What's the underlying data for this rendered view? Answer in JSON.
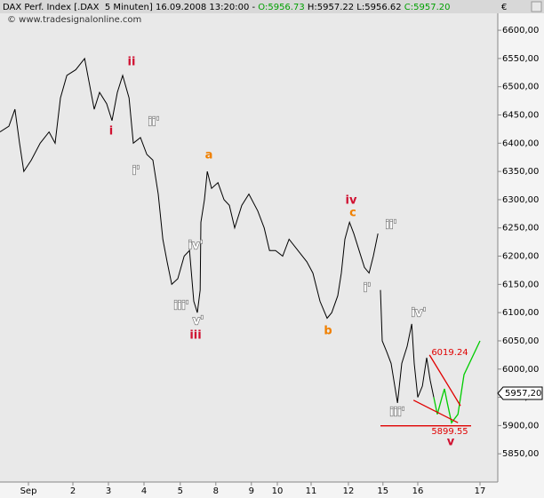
{
  "chart_data": {
    "type": "line",
    "header": [
      {
        "text": "DAX Perf. Index [.DAX  5 Minuten] 16.09.2008 13:20:00 - ",
        "color": "#000000"
      },
      {
        "text": "O:5956.73",
        "color": "#00a000"
      },
      {
        "text": " H:5957.22 L:5956.62 ",
        "color": "#000000"
      },
      {
        "text": "C:5957.20",
        "color": "#00a000"
      }
    ],
    "watermark": "© www.tradesignalonline.com",
    "currency": "€",
    "xlim": [
      -0.8,
      13.2
    ],
    "xticks": [
      {
        "value": 0,
        "label": "Sep"
      },
      {
        "value": 1.25,
        "label": "2"
      },
      {
        "value": 2.25,
        "label": "3"
      },
      {
        "value": 3.25,
        "label": "4"
      },
      {
        "value": 4.27,
        "label": "5"
      },
      {
        "value": 5.27,
        "label": "8"
      },
      {
        "value": 6.27,
        "label": "9"
      },
      {
        "value": 7.0,
        "label": "10"
      },
      {
        "value": 7.95,
        "label": "11"
      },
      {
        "value": 9.0,
        "label": "12"
      },
      {
        "value": 9.97,
        "label": "15"
      },
      {
        "value": 10.95,
        "label": "16"
      },
      {
        "value": 12.7,
        "label": "17"
      }
    ],
    "ylim": [
      5800,
      6630
    ],
    "yticks": [
      {
        "value": 5850,
        "label": "5850,00"
      },
      {
        "value": 5900,
        "label": "5900,00"
      },
      {
        "value": 5950,
        "label": "5950,00"
      },
      {
        "value": 6000,
        "label": "6000,00"
      },
      {
        "value": 6050,
        "label": "6050,00"
      },
      {
        "value": 6100,
        "label": "6100,00"
      },
      {
        "value": 6150,
        "label": "6150,00"
      },
      {
        "value": 6200,
        "label": "6200,00"
      },
      {
        "value": 6250,
        "label": "6250,00"
      },
      {
        "value": 6300,
        "label": "6300,00"
      },
      {
        "value": 6350,
        "label": "6350,00"
      },
      {
        "value": 6400,
        "label": "6400,00"
      },
      {
        "value": 6450,
        "label": "6450,00"
      },
      {
        "value": 6500,
        "label": "6500,00"
      },
      {
        "value": 6550,
        "label": "6550,00"
      },
      {
        "value": 6600,
        "label": "6600,00"
      }
    ],
    "last_price": {
      "value": 5957.2,
      "label": "5957,20"
    },
    "series": [
      {
        "color": "#000000",
        "x": [
          -0.8,
          -0.55,
          -0.38,
          -0.25,
          -0.13,
          0.08,
          0.33,
          0.58,
          0.75,
          0.9,
          1.08,
          1.33,
          1.58,
          1.7,
          1.85,
          2.0,
          2.2,
          2.35,
          2.5,
          2.65,
          2.83,
          2.95,
          3.15,
          3.33,
          3.5,
          3.65,
          3.78,
          3.9,
          4.03,
          4.2,
          4.38,
          4.53,
          4.65,
          4.75,
          4.83,
          4.85,
          4.95,
          5.03,
          5.15,
          5.33,
          5.5,
          5.65,
          5.8,
          6.0,
          6.2,
          6.45,
          6.63,
          6.78,
          6.95,
          7.15,
          7.33,
          7.58,
          7.83,
          8.0,
          8.2,
          8.4,
          8.53,
          8.7,
          8.8,
          8.9,
          9.03,
          9.15,
          9.3,
          9.45,
          9.58,
          9.7,
          9.83,
          9.86,
          9.9,
          9.95,
          10.08,
          10.2,
          10.38,
          10.5,
          10.65,
          10.78,
          10.85,
          10.95,
          11.08,
          11.2,
          11.3,
          11.4
        ],
        "values": [
          6420,
          6430,
          6460,
          6400,
          6350,
          6370,
          6400,
          6420,
          6400,
          6480,
          6520,
          6530,
          6550,
          6510,
          6460,
          6490,
          6470,
          6440,
          6490,
          6520,
          6480,
          6400,
          6410,
          6380,
          6370,
          6310,
          6230,
          6190,
          6150,
          6160,
          6200,
          6210,
          6120,
          6100,
          6140,
          6260,
          6300,
          6350,
          6320,
          6330,
          6300,
          6290,
          6250,
          6290,
          6310,
          6280,
          6250,
          6210,
          6210,
          6200,
          6230,
          6210,
          6190,
          6170,
          6120,
          6090,
          6100,
          6130,
          6170,
          6230,
          6260,
          6240,
          6210,
          6180,
          6170,
          6200,
          6240,
          null,
          6140,
          6050,
          6030,
          6010,
          5940,
          6010,
          6040,
          6080,
          6010,
          5950,
          5970,
          6020,
          5980,
          5950
        ]
      },
      {
        "color": "#00cc00",
        "x": [
          11.4,
          11.5,
          11.63,
          11.7,
          11.78,
          11.9,
          12.08,
          12.25,
          12.7
        ],
        "values": [
          5950,
          5920,
          5950,
          5965,
          5940,
          5905,
          5920,
          5990,
          6050
        ]
      },
      {
        "color": "#e00000",
        "x": [
          11.28,
          12.15
        ],
        "values": [
          6025,
          5935
        ]
      },
      {
        "color": "#e00000",
        "x": [
          10.83,
          12.08
        ],
        "values": [
          5945,
          5905
        ]
      },
      {
        "color": "#e00000",
        "x": [
          9.9,
          12.45
        ],
        "values": [
          5899.55,
          5899.55
        ]
      }
    ],
    "annotations": [
      {
        "text": "ii",
        "color": "#d01030"
      },
      {
        "text": "i",
        "color": "#d01030"
      },
      {
        "text": "ii'",
        "color": "#ffffff"
      },
      {
        "text": "i'",
        "color": "#ffffff"
      },
      {
        "text": "a",
        "color": "#f08000"
      },
      {
        "text": "iv'",
        "color": "#ffffff"
      },
      {
        "text": "iii'",
        "color": "#ffffff"
      },
      {
        "text": "v'",
        "color": "#ffffff"
      },
      {
        "text": "iii",
        "color": "#d01030"
      },
      {
        "text": "iv",
        "color": "#d01030"
      },
      {
        "text": "c",
        "color": "#f08000"
      },
      {
        "text": "ii'",
        "color": "#ffffff"
      },
      {
        "text": "i'",
        "color": "#ffffff"
      },
      {
        "text": "b",
        "color": "#f08000"
      },
      {
        "text": "iv'",
        "color": "#ffffff"
      },
      {
        "text": "iii'",
        "color": "#ffffff"
      },
      {
        "text": "6019.24",
        "color": "#e00000"
      },
      {
        "text": "5899.55",
        "color": "#e00000"
      },
      {
        "text": "v",
        "color": "#d01030"
      }
    ]
  }
}
